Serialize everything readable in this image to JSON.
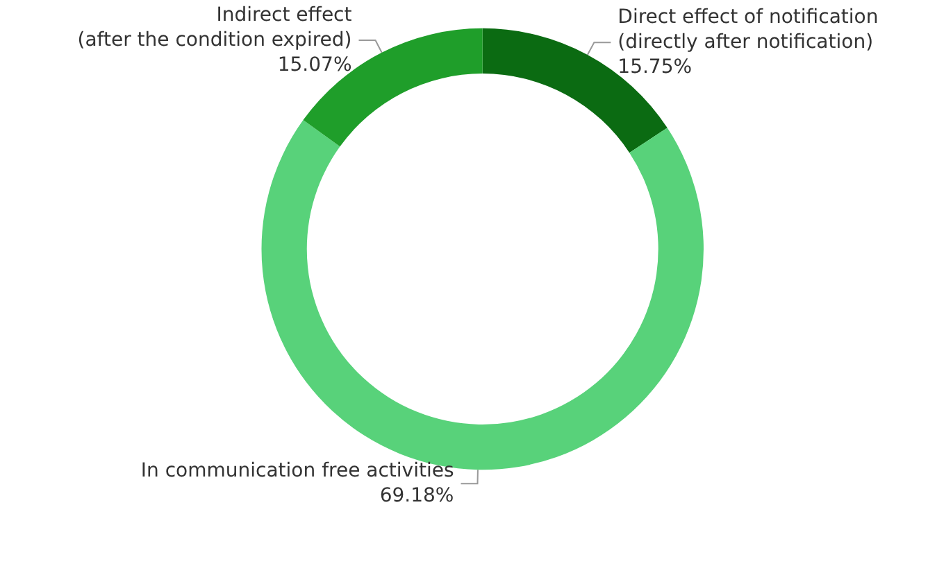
{
  "chart_data": {
    "type": "donut",
    "categories": [
      "Direct effect of notification\n(directly after notification)",
      "In communication free activities",
      "Indirect effect\n(after the condition expired)"
    ],
    "values": [
      15.75,
      69.18,
      15.07
    ],
    "value_labels": [
      "15.75%",
      "69.18%",
      "15.07%"
    ],
    "colors": [
      "#0b6b12",
      "#58d27a",
      "#1f9e2a"
    ]
  }
}
